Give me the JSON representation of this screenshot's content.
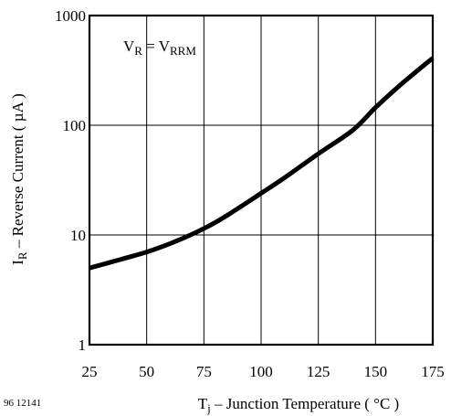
{
  "figure_id": "96 12141",
  "chart_data": {
    "type": "line",
    "title": "",
    "xlabel": {
      "main": "T",
      "sub": "j",
      "rest": " – Junction Temperature ( °C )"
    },
    "ylabel": {
      "main": "I",
      "sub": "R",
      "rest": " – Reverse Current ( µA )"
    },
    "annotation": {
      "left_main": "V",
      "left_sub": "R",
      "equals": " = ",
      "right_main": "V",
      "right_sub": "RRM"
    },
    "xlim": [
      25,
      175
    ],
    "ylim": [
      1,
      1000
    ],
    "y_scale": "log",
    "grid": true,
    "x_ticks": [
      25,
      50,
      75,
      100,
      125,
      150,
      175
    ],
    "x_tick_labels": [
      "25",
      "50",
      "75",
      "100",
      "125",
      "150",
      "175"
    ],
    "y_ticks": [
      1,
      10,
      100,
      1000
    ],
    "y_tick_labels": [
      "1",
      "10",
      "100",
      "1000"
    ],
    "series": [
      {
        "x": [
          25,
          40,
          50,
          60,
          70,
          80,
          90,
          100,
          110,
          125,
          140,
          150,
          160,
          175
        ],
        "y": [
          5.0,
          6.1,
          7.0,
          8.3,
          10.2,
          13.0,
          17.5,
          24,
          33,
          55,
          90,
          145,
          225,
          410
        ]
      }
    ]
  }
}
